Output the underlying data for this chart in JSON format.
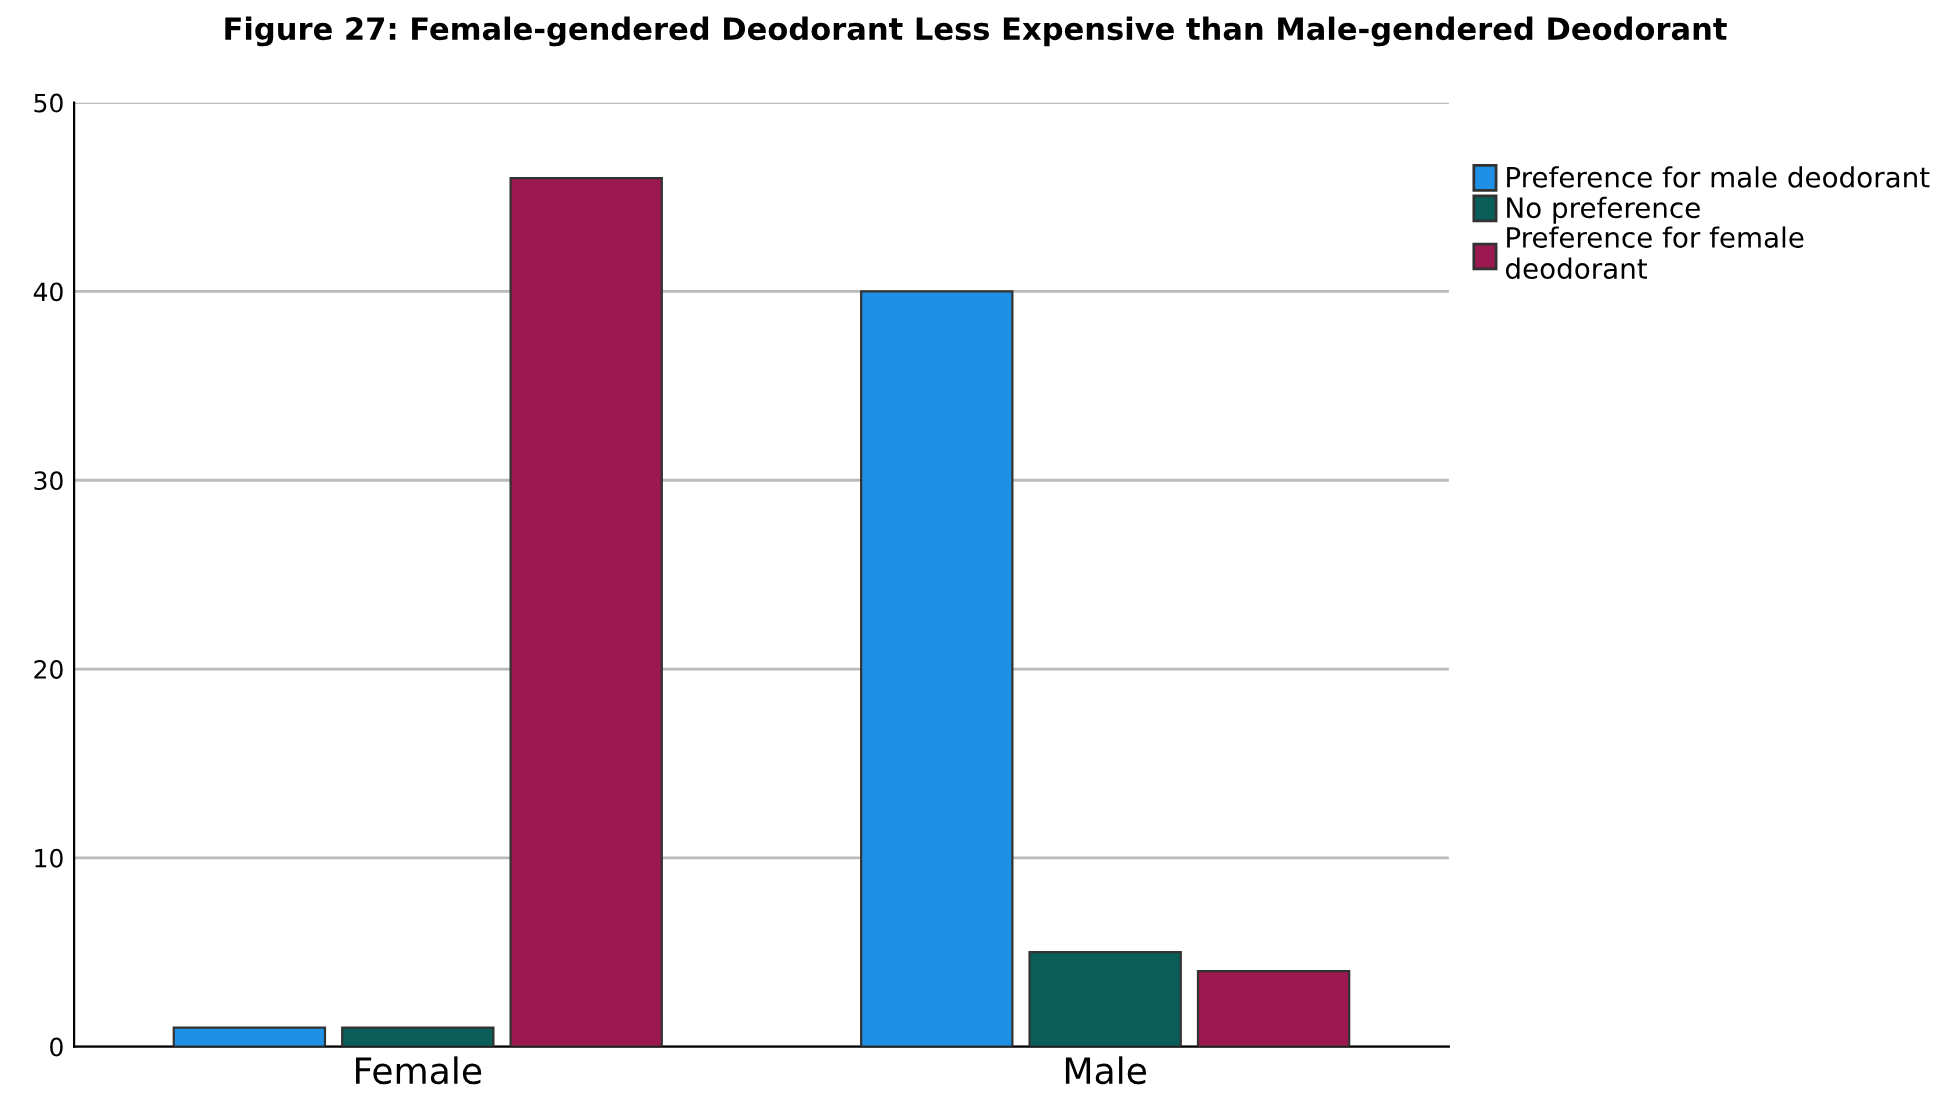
{
  "chart_data": {
    "type": "bar",
    "title": "Figure 27: Female-gendered Deodorant Less Expensive than Male-gendered Deodorant",
    "categories": [
      "Female",
      "Male"
    ],
    "series": [
      {
        "name": "Preference for male deodorant",
        "color": "#1e90e6",
        "values": [
          1,
          40
        ]
      },
      {
        "name": "No preference",
        "color": "#0a5e5a",
        "values": [
          1,
          5
        ]
      },
      {
        "name": "Preference for female\ndeodorant",
        "color": "#9c1850",
        "values": [
          46,
          4
        ]
      }
    ],
    "ylim": [
      0,
      50
    ],
    "yticks": [
      0,
      10,
      20,
      30,
      40,
      50
    ],
    "grid": "y",
    "legend": "top right"
  }
}
